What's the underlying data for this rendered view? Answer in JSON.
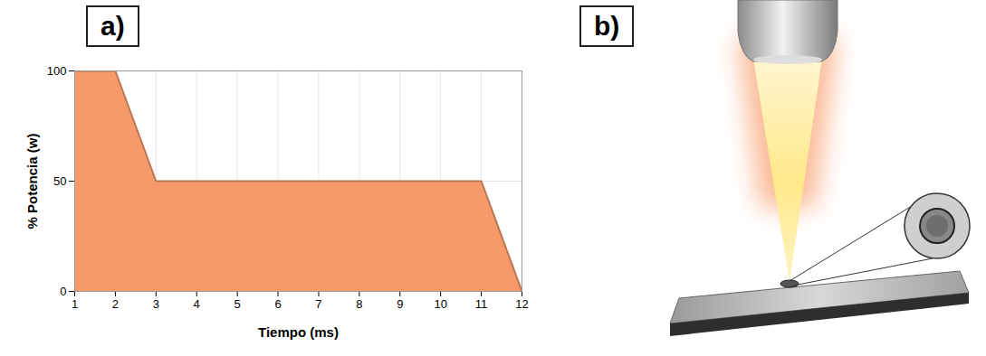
{
  "panel_labels": [
    "a)",
    "b)"
  ],
  "chart_data": {
    "type": "area",
    "x": [
      1,
      2,
      3,
      4,
      5,
      6,
      7,
      8,
      9,
      10,
      11,
      12
    ],
    "values": [
      100,
      100,
      50,
      50,
      50,
      50,
      50,
      50,
      50,
      50,
      50,
      0
    ],
    "color": "#f79a6b",
    "xlabel": "Tiempo (ms)",
    "ylabel": "% Potencia (w)",
    "xlim": [
      1,
      12
    ],
    "xticks": [
      1,
      2,
      3,
      4,
      5,
      6,
      7,
      8,
      9,
      10,
      11,
      12
    ],
    "ylim": [
      0,
      100
    ],
    "yticks": [
      0,
      50,
      100
    ],
    "grid": true
  }
}
